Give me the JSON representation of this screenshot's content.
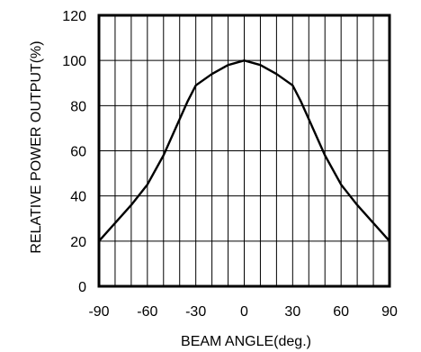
{
  "chart_data": {
    "type": "line",
    "title": "",
    "xlabel": "BEAM ANGLE(deg.)",
    "ylabel": "RELATIVE POWER OUTPUT(%)",
    "xlim": [
      -90,
      90
    ],
    "ylim": [
      0,
      120
    ],
    "xticks": [
      -90,
      -60,
      -30,
      0,
      30,
      60,
      90
    ],
    "yticks": [
      0,
      20,
      40,
      60,
      80,
      100,
      120
    ],
    "x_minor_step": 10,
    "grid": true,
    "series": [
      {
        "x": [
          -90,
          -80,
          -70,
          -60,
          -50,
          -40,
          -35,
          -30,
          -20,
          -10,
          0,
          10,
          20,
          30,
          35,
          40,
          50,
          60,
          70,
          80,
          90
        ],
        "y": [
          20,
          28,
          36,
          45,
          58,
          74,
          82,
          89,
          94,
          98,
          100,
          98,
          94,
          89,
          82,
          74,
          58,
          45,
          36,
          28,
          20
        ],
        "color": "#000000"
      }
    ]
  }
}
